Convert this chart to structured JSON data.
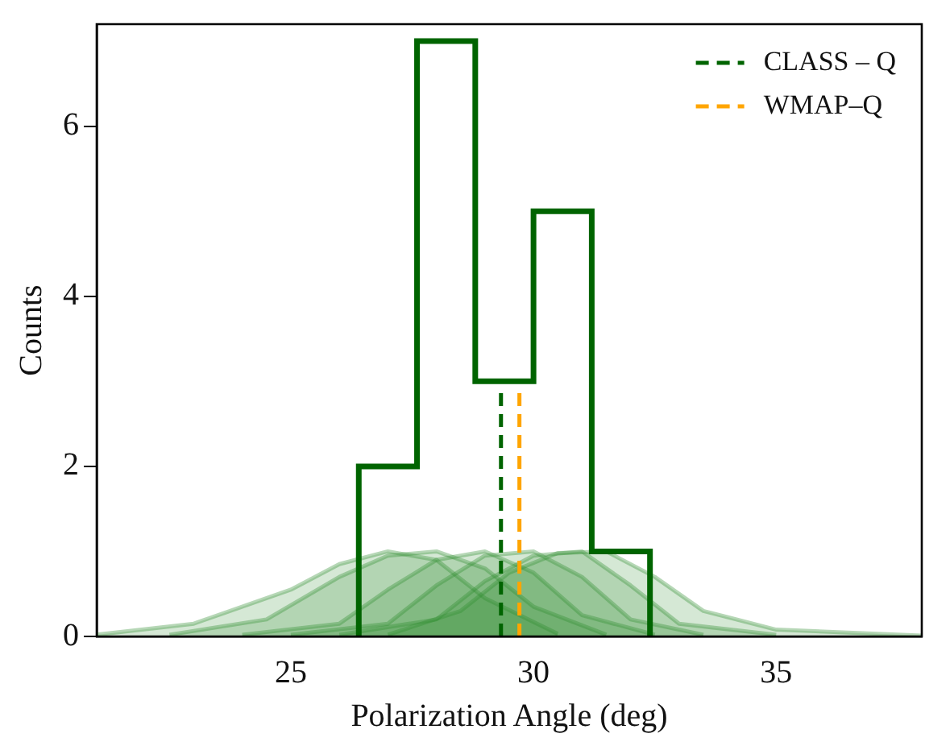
{
  "chart_data": {
    "type": "histogram",
    "xlabel": "Polarization Angle (deg)",
    "ylabel": "Counts",
    "bins": [
      26.4,
      27.6,
      28.8,
      30.0,
      31.2,
      32.4
    ],
    "values": [
      2,
      7,
      3,
      5,
      1
    ],
    "color": "#006400",
    "xlim": [
      21,
      38
    ],
    "xticks": [
      25,
      30,
      35
    ],
    "ylim": [
      0,
      7.2
    ],
    "yticks": [
      0,
      2,
      4,
      6
    ],
    "grid": false,
    "legend": "top right",
    "series": [
      {
        "type": "area",
        "color": "#2e8b2e",
        "x": [
          21,
          23,
          25,
          26,
          27,
          28,
          29,
          30.5
        ],
        "values": [
          0.02,
          0.15,
          0.55,
          0.85,
          1,
          0.9,
          0.45,
          0.03
        ]
      },
      {
        "type": "area",
        "color": "#2e8b2e",
        "x": [
          22.5,
          24.5,
          26,
          27,
          28,
          29,
          30,
          31.5
        ],
        "values": [
          0.02,
          0.2,
          0.7,
          0.95,
          1,
          0.8,
          0.35,
          0.02
        ]
      },
      {
        "type": "area",
        "color": "#2e8b2e",
        "x": [
          24,
          26,
          27,
          28,
          29,
          30,
          31,
          32.5
        ],
        "values": [
          0.02,
          0.15,
          0.55,
          0.9,
          1,
          0.75,
          0.25,
          0.02
        ]
      },
      {
        "type": "area",
        "color": "#2e8b2e",
        "x": [
          25,
          27,
          28,
          29,
          30,
          31,
          32,
          33.5
        ],
        "values": [
          0.02,
          0.15,
          0.6,
          0.95,
          1,
          0.7,
          0.2,
          0.02
        ]
      },
      {
        "type": "area",
        "color": "#2e8b2e",
        "x": [
          26,
          28,
          29,
          30,
          31,
          32,
          33,
          35
        ],
        "values": [
          0.02,
          0.2,
          0.65,
          0.95,
          1,
          0.6,
          0.15,
          0.02
        ]
      },
      {
        "type": "area",
        "color": "#2e8b2e",
        "x": [
          27,
          28.5,
          29.5,
          30.5,
          31.5,
          32.5,
          33.5,
          35,
          38
        ],
        "values": [
          0.02,
          0.3,
          0.75,
          0.98,
          1,
          0.7,
          0.3,
          0.08,
          0.01
        ]
      },
      {
        "type": "line",
        "name": "CLASS – Q",
        "color": "#006400",
        "line_style": "dashed",
        "x": [
          29.33,
          29.33
        ],
        "values": [
          0,
          2.92
        ]
      },
      {
        "type": "line",
        "name": "WMAP–Q",
        "color": "#ffa500",
        "line_style": "dashed",
        "x": [
          29.71,
          29.71
        ],
        "values": [
          0,
          2.92
        ]
      }
    ]
  }
}
